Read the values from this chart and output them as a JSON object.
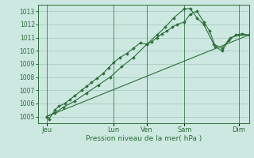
{
  "bg_color": "#cce8e0",
  "grid_color": "#aaccc4",
  "line_color": "#2d6e3a",
  "xlabel": "Pression niveau de la mer( hPa )",
  "ylim": [
    1004.5,
    1013.5
  ],
  "yticks": [
    1005,
    1006,
    1007,
    1008,
    1009,
    1010,
    1011,
    1012,
    1013
  ],
  "xlim": [
    0,
    252
  ],
  "xtick_positions": [
    10,
    90,
    130,
    175,
    240
  ],
  "xtick_labels": [
    "Jeu",
    "Lun",
    "Ven",
    "Sam",
    "Dim"
  ],
  "vlines": [
    10,
    90,
    130,
    175,
    240
  ],
  "line1_x": [
    10,
    13,
    20,
    25,
    32,
    38,
    44,
    52,
    58,
    64,
    70,
    78,
    84,
    90,
    98,
    106,
    114,
    122,
    130,
    136,
    142,
    148,
    154,
    160,
    166,
    175,
    182,
    190,
    198,
    205,
    212,
    220,
    228,
    236,
    244,
    252
  ],
  "line1_y": [
    1005.0,
    1004.8,
    1005.5,
    1005.8,
    1006.0,
    1006.3,
    1006.6,
    1007.0,
    1007.3,
    1007.6,
    1007.9,
    1008.3,
    1008.7,
    1009.1,
    1009.5,
    1009.8,
    1010.2,
    1010.6,
    1010.5,
    1010.7,
    1011.0,
    1011.3,
    1011.5,
    1011.8,
    1012.0,
    1012.2,
    1012.8,
    1013.0,
    1012.2,
    1011.5,
    1010.3,
    1010.0,
    1010.8,
    1011.2,
    1011.3,
    1011.2
  ],
  "line2_x": [
    10,
    20,
    30,
    44,
    58,
    72,
    86,
    100,
    114,
    130,
    142,
    152,
    162,
    175,
    182,
    190,
    198,
    210,
    220,
    230,
    240,
    252
  ],
  "line2_y": [
    1005.0,
    1005.3,
    1005.7,
    1006.2,
    1006.8,
    1007.4,
    1008.0,
    1008.8,
    1009.5,
    1010.5,
    1011.2,
    1011.8,
    1012.5,
    1013.2,
    1013.2,
    1012.5,
    1012.0,
    1010.5,
    1010.2,
    1011.0,
    1011.2,
    1011.2
  ],
  "line3_x": [
    10,
    252
  ],
  "line3_y": [
    1005.0,
    1011.2
  ]
}
